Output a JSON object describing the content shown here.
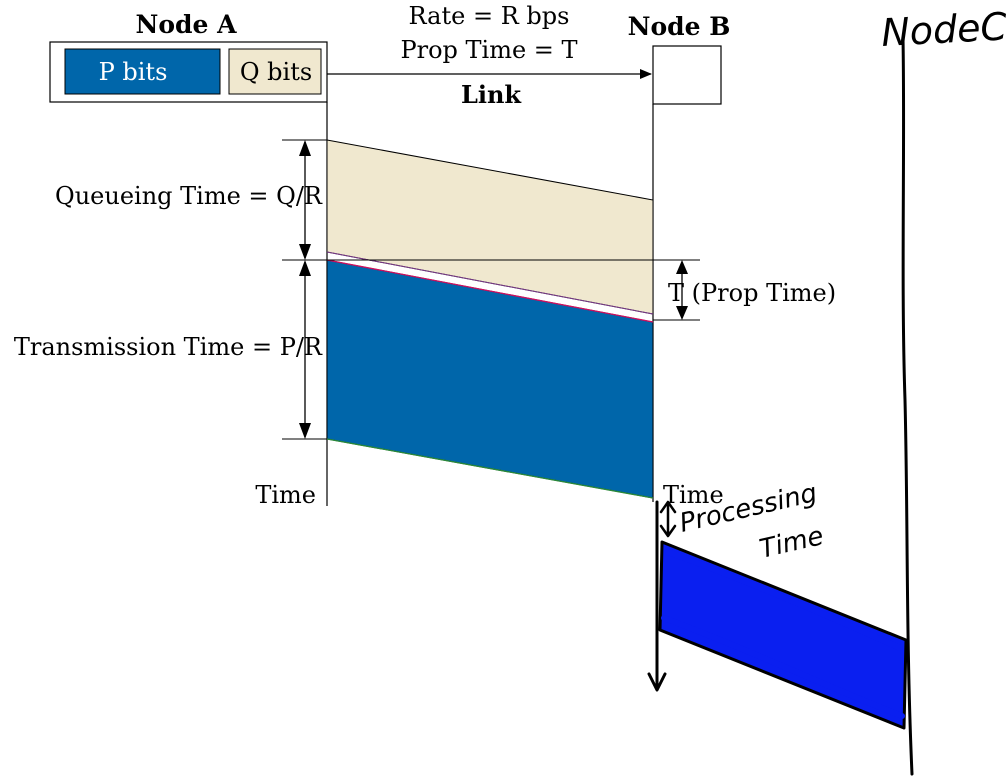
{
  "nodes": {
    "a_title": "Node A",
    "b_title": "Node B",
    "c_title": "NodeC"
  },
  "buffer": {
    "p_label": "P bits",
    "q_label": "Q bits"
  },
  "link": {
    "rate": "Rate = R bps",
    "prop": "Prop Time = T",
    "label": "Link"
  },
  "timing": {
    "queueing": "Queueing Time = Q/R",
    "transmission": "Transmission Time = P/R",
    "prop": "T (Prop Time)",
    "time_a": "Time",
    "time_b": "Time",
    "processing_1": "Processing",
    "processing_2": "Time"
  },
  "colors": {
    "p_blue": "#0066aa",
    "q_beige": "#f0e8cf",
    "handwritten_blue": "#0a1ff0"
  }
}
